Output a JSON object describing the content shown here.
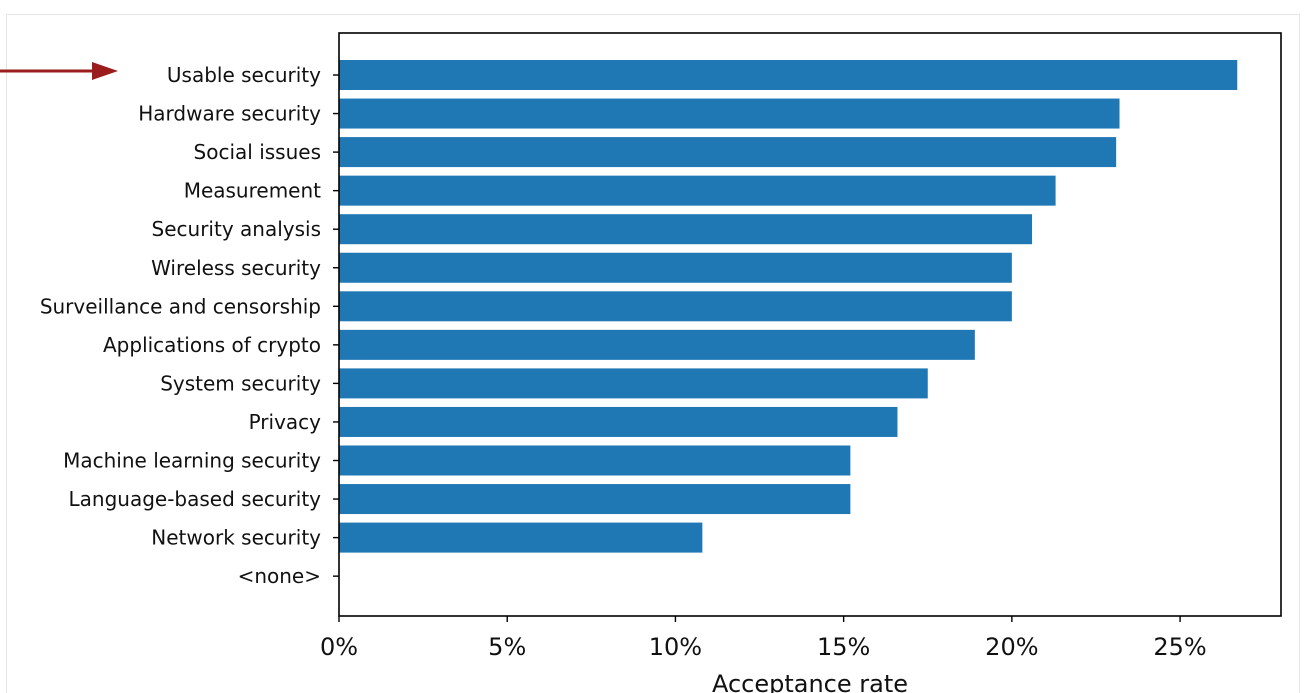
{
  "chart_data": {
    "type": "bar",
    "orientation": "horizontal",
    "categories": [
      "Usable security",
      "Hardware security",
      "Social issues",
      "Measurement",
      "Security analysis",
      "Wireless security",
      "Surveillance and censorship",
      "Applications of crypto",
      "System security",
      "Privacy",
      "Machine learning security",
      "Language-based security",
      "Network security",
      "<none>"
    ],
    "values": [
      26.7,
      23.2,
      23.1,
      21.3,
      20.6,
      20.0,
      20.0,
      18.9,
      17.5,
      16.6,
      15.2,
      15.2,
      10.8,
      0
    ],
    "xlabel": "Acceptance rate",
    "ylabel": "",
    "title": "",
    "xlim": [
      0,
      28
    ],
    "xticks": [
      0,
      5,
      10,
      15,
      20,
      25
    ],
    "xtick_labels": [
      "0%",
      "5%",
      "10%",
      "15%",
      "20%",
      "25%"
    ],
    "grid": false,
    "bar_color": "#1f77b4",
    "annotation": {
      "type": "arrow",
      "target": "Usable security",
      "color": "#9b1c1c"
    }
  }
}
